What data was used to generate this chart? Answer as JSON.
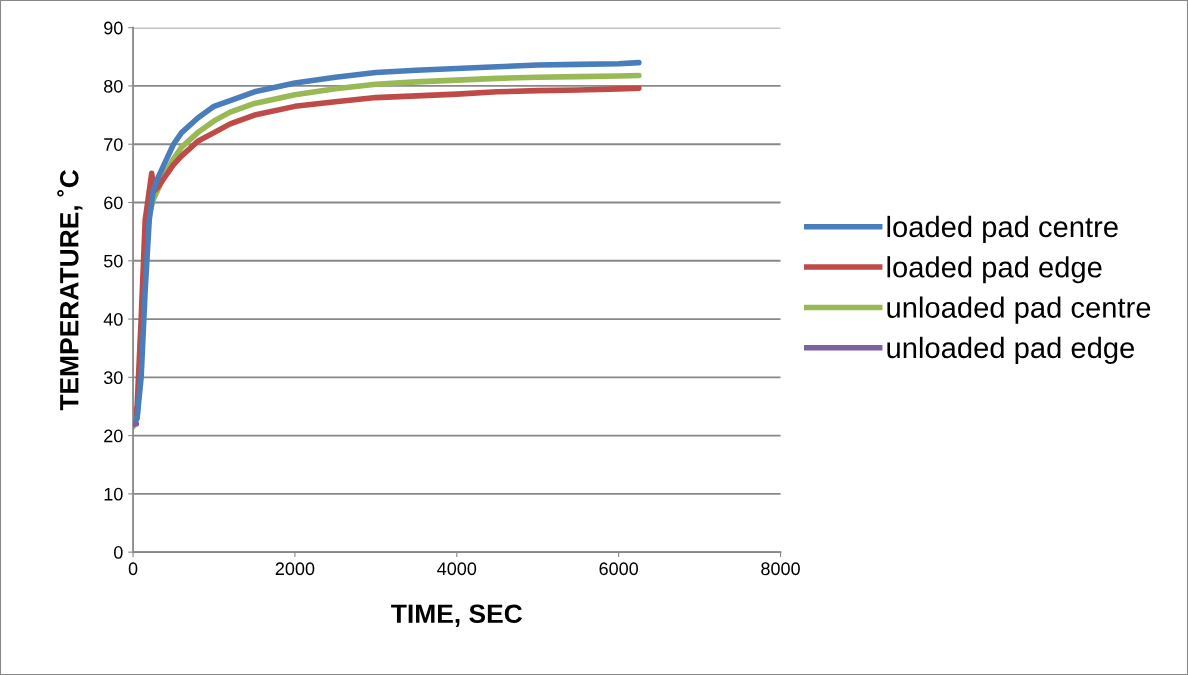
{
  "chart_data": {
    "type": "line",
    "xlabel": "TIME, SEC",
    "ylabel": "TEMPERATURE, ˚C",
    "xlim": [
      0,
      8000
    ],
    "xticks": [
      0,
      2000,
      4000,
      6000,
      8000
    ],
    "ylim": [
      0,
      90
    ],
    "yticks": [
      0,
      10,
      20,
      30,
      40,
      50,
      60,
      70,
      80,
      90
    ],
    "grid": "y",
    "legend": "right",
    "marker": "none",
    "line_style": "solid",
    "series": [
      {
        "name": "loaded pad centre",
        "color": "#4a7ebb",
        "x": [
          0,
          50,
          100,
          150,
          200,
          250,
          300,
          400,
          500,
          600,
          800,
          1000,
          1200,
          1500,
          2000,
          2500,
          3000,
          3500,
          4000,
          4500,
          5000,
          5500,
          6000,
          6250
        ],
        "values": [
          22,
          23,
          30,
          45,
          57,
          62,
          64,
          67,
          70,
          72,
          74.5,
          76.5,
          77.5,
          79,
          80.5,
          81.5,
          82.3,
          82.7,
          83,
          83.3,
          83.6,
          83.7,
          83.8,
          84
        ]
      },
      {
        "name": "loaded pad edge",
        "color": "#be4b48",
        "x": [
          0,
          50,
          100,
          150,
          200,
          230,
          260,
          300,
          400,
          500,
          600,
          800,
          1000,
          1200,
          1500,
          2000,
          2500,
          3000,
          3500,
          4000,
          4500,
          5000,
          5500,
          6000,
          6250
        ],
        "values": [
          23,
          25,
          40,
          57,
          62,
          65,
          62,
          62.5,
          64.5,
          66.5,
          68,
          70.5,
          72,
          73.5,
          75,
          76.5,
          77.3,
          78,
          78.3,
          78.6,
          79,
          79.2,
          79.3,
          79.5,
          79.6
        ]
      },
      {
        "name": "unloaded pad centre",
        "color": "#98b954",
        "x": [
          0,
          50,
          100,
          150,
          200,
          250,
          300,
          400,
          500,
          600,
          800,
          1000,
          1200,
          1500,
          2000,
          2500,
          3000,
          3500,
          4000,
          4500,
          5000,
          5500,
          6000,
          6250
        ],
        "values": [
          21.5,
          23,
          35,
          52,
          58,
          60.5,
          62,
          65,
          67.5,
          69.5,
          72,
          74,
          75.5,
          77,
          78.5,
          79.5,
          80.3,
          80.7,
          81,
          81.3,
          81.5,
          81.6,
          81.7,
          81.8
        ]
      },
      {
        "name": "unloaded pad edge",
        "color": "#7d60a0",
        "x": [
          0,
          40
        ],
        "values": [
          22,
          22
        ]
      }
    ]
  }
}
